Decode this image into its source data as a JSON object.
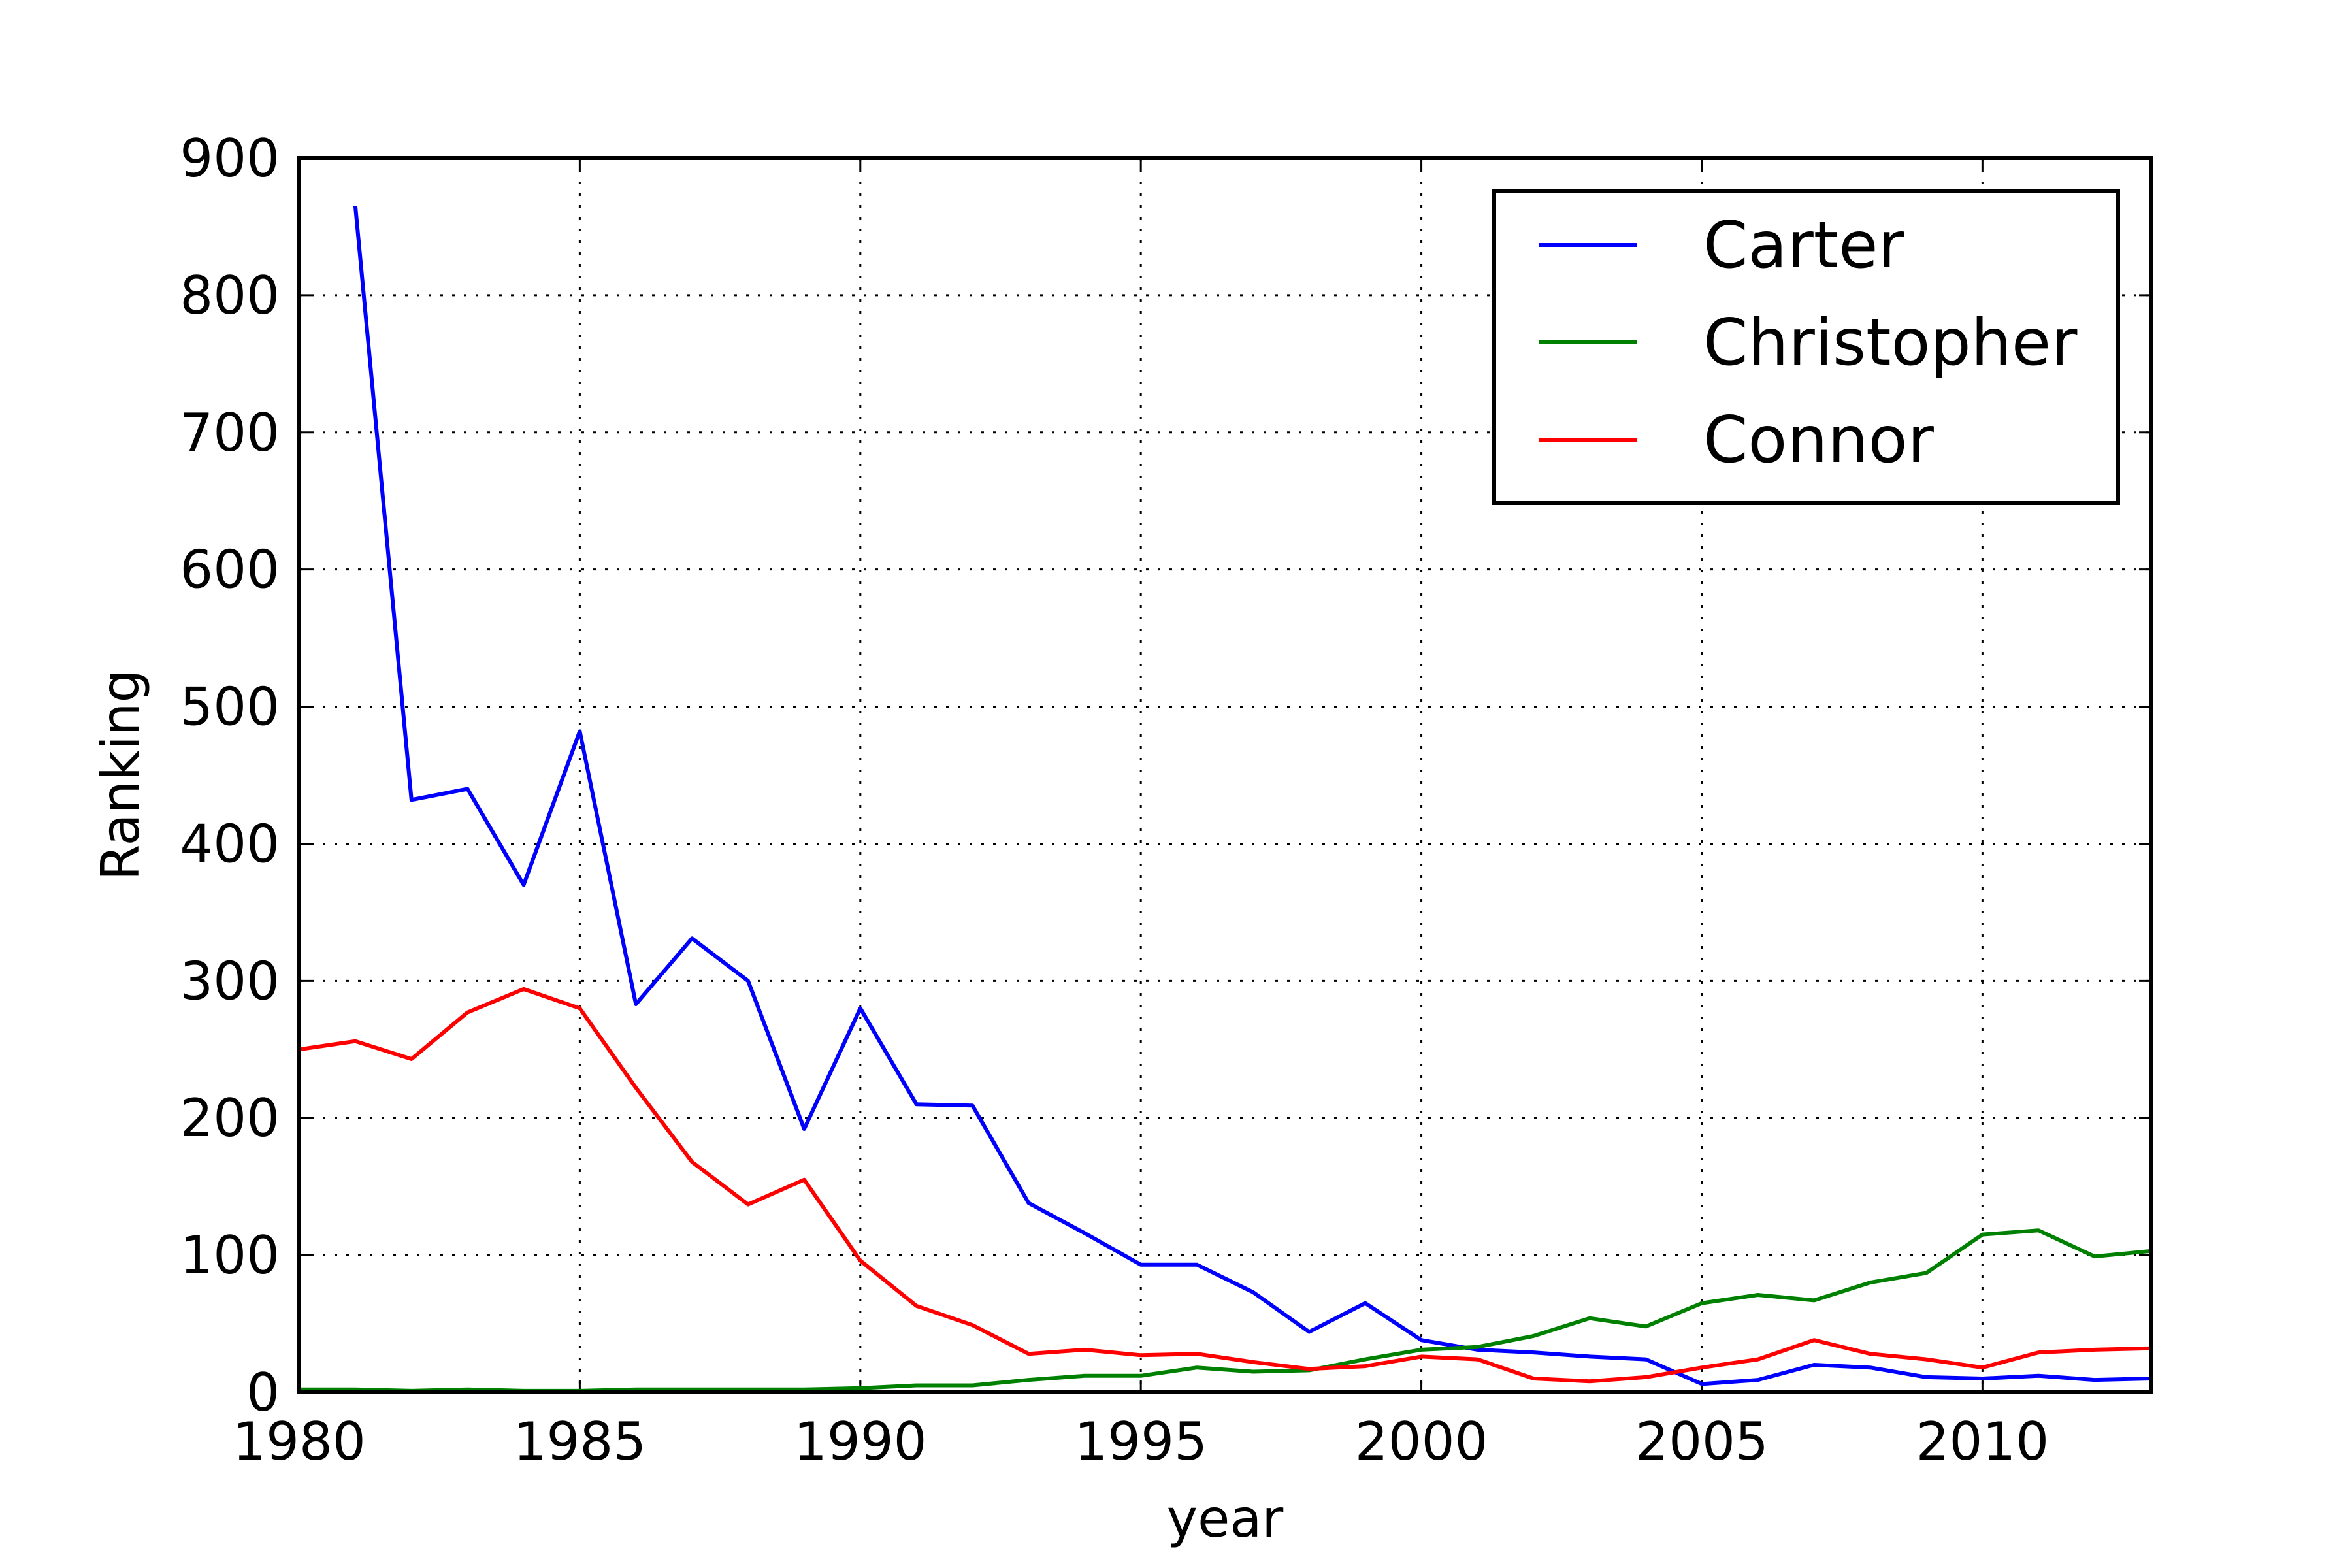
{
  "chart_data": {
    "type": "line",
    "title": "",
    "xlabel": "year",
    "ylabel": "Ranking",
    "xlim": [
      1980,
      2013
    ],
    "ylim": [
      0,
      900
    ],
    "xticks": [
      1980,
      1985,
      1990,
      1995,
      2000,
      2005,
      2010
    ],
    "yticks": [
      0,
      100,
      200,
      300,
      400,
      500,
      600,
      700,
      800,
      900
    ],
    "grid": true,
    "legend_position": "top-right",
    "x": [
      1980,
      1981,
      1982,
      1983,
      1984,
      1985,
      1986,
      1987,
      1988,
      1989,
      1990,
      1991,
      1992,
      1993,
      1994,
      1995,
      1996,
      1997,
      1998,
      1999,
      2000,
      2001,
      2002,
      2003,
      2004,
      2005,
      2006,
      2007,
      2008,
      2009,
      2010,
      2011,
      2012,
      2013
    ],
    "series": [
      {
        "name": "Carter",
        "color": "#0000ff",
        "x": [
          1981,
          1982,
          1983,
          1984,
          1985,
          1986,
          1987,
          1988,
          1989,
          1990,
          1991,
          1992,
          1993,
          1994,
          1995,
          1996,
          1997,
          1998,
          1999,
          2000,
          2001,
          2002,
          2003,
          2004,
          2005,
          2006,
          2007,
          2008,
          2009,
          2010,
          2011,
          2012,
          2013
        ],
        "values": [
          865,
          432,
          440,
          370,
          482,
          283,
          331,
          300,
          192,
          280,
          210,
          209,
          138,
          116,
          93,
          93,
          73,
          44,
          65,
          38,
          31,
          29,
          26,
          24,
          6,
          9,
          20,
          18,
          11,
          10,
          12,
          9,
          10
        ]
      },
      {
        "name": "Christopher",
        "color": "#008000",
        "x": [
          1980,
          1981,
          1982,
          1983,
          1984,
          1985,
          1986,
          1987,
          1988,
          1989,
          1990,
          1991,
          1992,
          1993,
          1994,
          1995,
          1996,
          1997,
          1998,
          1999,
          2000,
          2001,
          2002,
          2003,
          2004,
          2005,
          2006,
          2007,
          2008,
          2009,
          2010,
          2011,
          2012,
          2013
        ],
        "values": [
          2,
          2,
          1,
          2,
          1,
          1,
          2,
          2,
          2,
          2,
          3,
          5,
          5,
          9,
          12,
          12,
          18,
          15,
          16,
          24,
          31,
          33,
          41,
          54,
          48,
          65,
          71,
          67,
          80,
          87,
          115,
          118,
          99,
          103
        ]
      },
      {
        "name": "Connor",
        "color": "#ff0000",
        "x": [
          1980,
          1981,
          1982,
          1983,
          1984,
          1985,
          1986,
          1987,
          1988,
          1989,
          1990,
          1991,
          1992,
          1993,
          1994,
          1995,
          1996,
          1997,
          1998,
          1999,
          2000,
          2001,
          2002,
          2003,
          2004,
          2005,
          2006,
          2007,
          2008,
          2009,
          2010,
          2011,
          2012,
          2013
        ],
        "values": [
          250,
          256,
          243,
          277,
          294,
          280,
          222,
          168,
          137,
          155,
          96,
          63,
          49,
          28,
          31,
          27,
          28,
          22,
          17,
          19,
          26,
          24,
          10,
          8,
          11,
          18,
          24,
          38,
          28,
          24,
          18,
          29,
          31,
          32
        ]
      }
    ]
  }
}
